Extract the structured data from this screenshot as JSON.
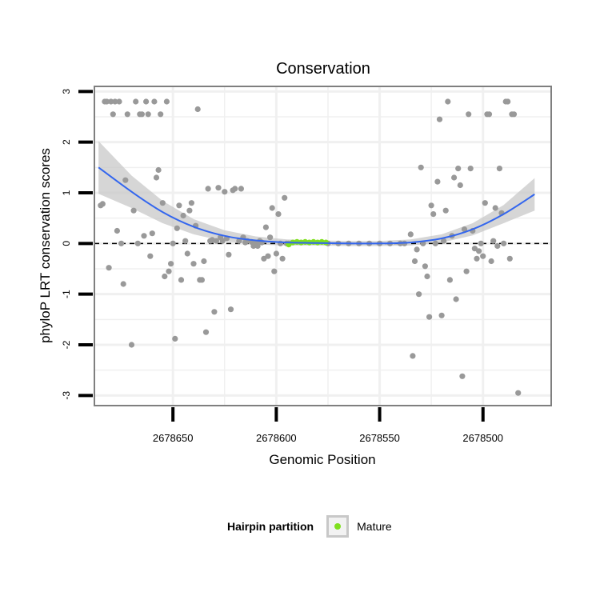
{
  "chart_data": {
    "type": "scatter",
    "title": "Conservation",
    "xlabel": "Genomic Position",
    "ylabel": "phyloP LRT conservation scores",
    "x_reversed": true,
    "xlim": [
      2678688,
      2678467
    ],
    "ylim": [
      -3.2,
      3.1
    ],
    "x_ticks": [
      2678650,
      2678600,
      2678550,
      2678500
    ],
    "x_tick_labels": [
      "2678650",
      "2678600",
      "2678550",
      "2678500"
    ],
    "y_ticks": [
      -3,
      -2,
      -1,
      0,
      1,
      2,
      3
    ],
    "y_tick_labels": [
      "-3",
      "-2",
      "-1",
      "0",
      "1",
      "2",
      "3"
    ],
    "reference_line_y": 0,
    "colors": {
      "points": "#999999",
      "mature": "#7fe01e",
      "smooth": "#3366ee",
      "ribbon": "#c8c8c8",
      "panel_border": "#7f7f7f",
      "grid": "#f0f0f0"
    },
    "series": [
      {
        "name": "points",
        "points": [
          [
            2678685,
            0.75
          ],
          [
            2678684,
            0.78
          ],
          [
            2678683,
            2.8
          ],
          [
            2678682,
            2.8
          ],
          [
            2678681,
            -0.48
          ],
          [
            2678680,
            2.8
          ],
          [
            2678679,
            2.55
          ],
          [
            2678678,
            2.8
          ],
          [
            2678677,
            0.25
          ],
          [
            2678676,
            2.8
          ],
          [
            2678675,
            0.0
          ],
          [
            2678674,
            -0.8
          ],
          [
            2678673,
            1.25
          ],
          [
            2678672,
            2.55
          ],
          [
            2678670,
            -2.0
          ],
          [
            2678669,
            0.65
          ],
          [
            2678668,
            2.8
          ],
          [
            2678667,
            0.0
          ],
          [
            2678666,
            2.55
          ],
          [
            2678665,
            2.55
          ],
          [
            2678664,
            0.15
          ],
          [
            2678663,
            2.8
          ],
          [
            2678662,
            2.55
          ],
          [
            2678661,
            -0.25
          ],
          [
            2678660,
            0.2
          ],
          [
            2678659,
            2.8
          ],
          [
            2678658,
            1.3
          ],
          [
            2678657,
            1.45
          ],
          [
            2678656,
            2.55
          ],
          [
            2678655,
            0.8
          ],
          [
            2678654,
            -0.65
          ],
          [
            2678653,
            2.8
          ],
          [
            2678652,
            -0.55
          ],
          [
            2678651,
            -0.4
          ],
          [
            2678650,
            0.0
          ],
          [
            2678649,
            -1.88
          ],
          [
            2678648,
            0.3
          ],
          [
            2678647,
            0.75
          ],
          [
            2678646,
            -0.72
          ],
          [
            2678645,
            0.55
          ],
          [
            2678644,
            0.05
          ],
          [
            2678643,
            -0.2
          ],
          [
            2678642,
            0.65
          ],
          [
            2678641,
            0.8
          ],
          [
            2678640,
            -0.4
          ],
          [
            2678639,
            0.35
          ],
          [
            2678638,
            2.65
          ],
          [
            2678637,
            -0.72
          ],
          [
            2678636,
            -0.72
          ],
          [
            2678635,
            -0.35
          ],
          [
            2678634,
            -1.75
          ],
          [
            2678633,
            1.08
          ],
          [
            2678632,
            0.05
          ],
          [
            2678631,
            0.07
          ],
          [
            2678630,
            -1.35
          ],
          [
            2678629,
            0.05
          ],
          [
            2678628,
            1.1
          ],
          [
            2678627,
            0.12
          ],
          [
            2678626,
            0.05
          ],
          [
            2678625,
            1.02
          ],
          [
            2678624,
            0.1
          ],
          [
            2678623,
            -0.22
          ],
          [
            2678622,
            -1.3
          ],
          [
            2678621,
            1.05
          ],
          [
            2678620,
            1.08
          ],
          [
            2678618,
            0.05
          ],
          [
            2678617,
            1.08
          ],
          [
            2678616,
            0.12
          ],
          [
            2678615,
            0.02
          ],
          [
            2678614,
            0.05
          ],
          [
            2678612,
            0.03
          ],
          [
            2678611,
            -0.05
          ],
          [
            2678610,
            0.02
          ],
          [
            2678609,
            -0.05
          ],
          [
            2678608,
            0.05
          ],
          [
            2678607,
            0.02
          ],
          [
            2678606,
            -0.3
          ],
          [
            2678605,
            0.32
          ],
          [
            2678604,
            -0.25
          ],
          [
            2678603,
            0.12
          ],
          [
            2678602,
            0.7
          ],
          [
            2678601,
            -0.55
          ],
          [
            2678600,
            -0.2
          ],
          [
            2678599,
            0.58
          ],
          [
            2678598,
            0.0
          ],
          [
            2678597,
            -0.3
          ],
          [
            2678596,
            0.9
          ],
          [
            2678595,
            0.0
          ],
          [
            2678594,
            0.0
          ],
          [
            2678575,
            0.0
          ],
          [
            2678570,
            0.0
          ],
          [
            2678565,
            0.0
          ],
          [
            2678560,
            0.0
          ],
          [
            2678555,
            0.0
          ],
          [
            2678550,
            0.0
          ],
          [
            2678545,
            0.0
          ],
          [
            2678540,
            0.0
          ],
          [
            2678538,
            0.0
          ],
          [
            2678535,
            0.18
          ],
          [
            2678534,
            -2.22
          ],
          [
            2678533,
            -0.35
          ],
          [
            2678532,
            -0.12
          ],
          [
            2678531,
            -1.0
          ],
          [
            2678530,
            1.5
          ],
          [
            2678529,
            0.0
          ],
          [
            2678528,
            -0.45
          ],
          [
            2678527,
            -0.65
          ],
          [
            2678526,
            -1.45
          ],
          [
            2678525,
            0.75
          ],
          [
            2678524,
            0.58
          ],
          [
            2678523,
            0.0
          ],
          [
            2678522,
            1.22
          ],
          [
            2678521,
            2.45
          ],
          [
            2678520,
            -1.42
          ],
          [
            2678519,
            0.05
          ],
          [
            2678518,
            0.65
          ],
          [
            2678517,
            2.8
          ],
          [
            2678516,
            -0.72
          ],
          [
            2678515,
            0.15
          ],
          [
            2678514,
            1.3
          ],
          [
            2678513,
            -1.1
          ],
          [
            2678512,
            1.48
          ],
          [
            2678511,
            1.15
          ],
          [
            2678510,
            -2.62
          ],
          [
            2678509,
            0.28
          ],
          [
            2678508,
            -0.55
          ],
          [
            2678507,
            2.55
          ],
          [
            2678506,
            1.48
          ],
          [
            2678505,
            0.25
          ],
          [
            2678504,
            -0.1
          ],
          [
            2678503,
            -0.3
          ],
          [
            2678502,
            -0.15
          ],
          [
            2678501,
            0.0
          ],
          [
            2678500,
            -0.25
          ],
          [
            2678499,
            0.8
          ],
          [
            2678498,
            2.55
          ],
          [
            2678497,
            2.55
          ],
          [
            2678496,
            -0.35
          ],
          [
            2678495,
            0.05
          ],
          [
            2678494,
            0.7
          ],
          [
            2678493,
            -0.05
          ],
          [
            2678492,
            1.48
          ],
          [
            2678491,
            0.6
          ],
          [
            2678490,
            0.0
          ],
          [
            2678489,
            2.8
          ],
          [
            2678488,
            2.8
          ],
          [
            2678487,
            -0.3
          ],
          [
            2678486,
            2.55
          ],
          [
            2678485,
            2.55
          ],
          [
            2678483,
            -2.95
          ]
        ]
      },
      {
        "name": "Mature",
        "points": [
          [
            2678594,
            -0.02
          ],
          [
            2678592,
            0.02
          ],
          [
            2678590,
            0.03
          ],
          [
            2678588,
            0.02
          ],
          [
            2678586,
            0.03
          ],
          [
            2678584,
            0.02
          ],
          [
            2678582,
            0.03
          ],
          [
            2678580,
            0.02
          ],
          [
            2678578,
            0.03
          ],
          [
            2678576,
            0.02
          ]
        ]
      }
    ],
    "smooth": {
      "x": [
        2678686,
        2678670,
        2678655,
        2678640,
        2678625,
        2678610,
        2678595,
        2678580,
        2678565,
        2678550,
        2678535,
        2678520,
        2678505,
        2678490,
        2678475
      ],
      "y": [
        1.5,
        1.02,
        0.62,
        0.33,
        0.15,
        0.06,
        0.02,
        0.01,
        0.0,
        0.0,
        0.02,
        0.1,
        0.28,
        0.58,
        0.97
      ],
      "lower": [
        0.98,
        0.7,
        0.4,
        0.18,
        0.04,
        -0.02,
        -0.04,
        -0.04,
        -0.05,
        -0.05,
        -0.04,
        0.02,
        0.16,
        0.4,
        0.65
      ],
      "upper": [
        2.02,
        1.34,
        0.84,
        0.48,
        0.26,
        0.14,
        0.08,
        0.06,
        0.05,
        0.05,
        0.08,
        0.18,
        0.4,
        0.76,
        1.29
      ]
    },
    "legend": {
      "title": "Hairpin partition",
      "entries": [
        {
          "label": "Mature",
          "color": "#7fe01e"
        }
      ],
      "position": "bottom"
    }
  }
}
